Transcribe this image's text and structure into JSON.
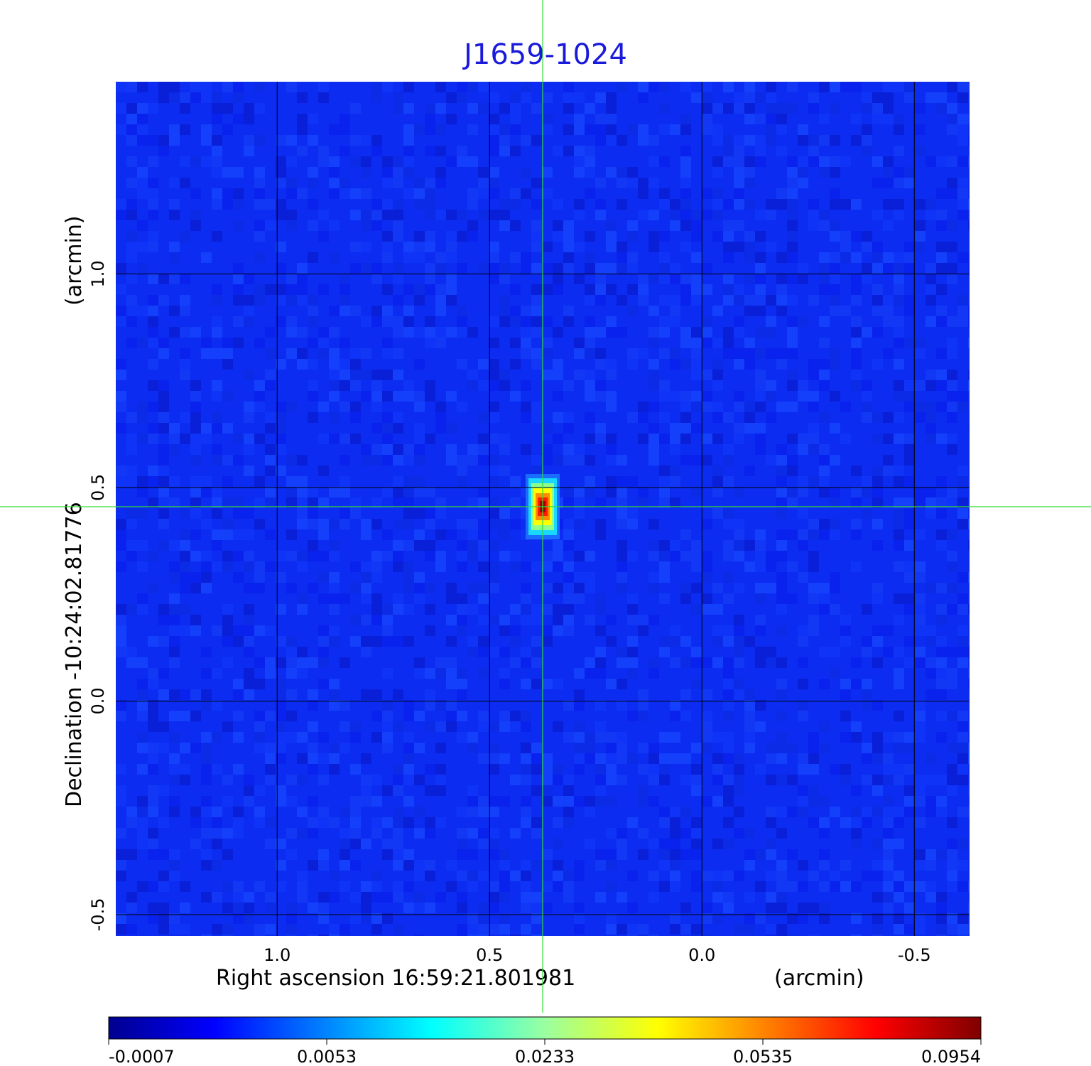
{
  "chart_data": {
    "type": "heatmap",
    "title": "J1659-1024",
    "xlabel": "Right ascension  16:59:21.801981",
    "xunit": "(arcmin)",
    "ylabel": "Declination  -10:24:02.81776",
    "yunit": "(arcmin)",
    "x_ticks": [
      {
        "value": 1.0,
        "label": "1.0"
      },
      {
        "value": 0.5,
        "label": "0.5"
      },
      {
        "value": 0.0,
        "label": "0.0"
      },
      {
        "value": -0.5,
        "label": "-0.5"
      }
    ],
    "y_ticks": [
      {
        "value": 1.0,
        "label": "1.0"
      },
      {
        "value": 0.5,
        "label": "0.5"
      },
      {
        "value": 0.0,
        "label": "0.0"
      },
      {
        "value": -0.5,
        "label": "-0.5"
      }
    ],
    "xlim": [
      1.38,
      -0.63
    ],
    "ylim": [
      -0.55,
      1.45
    ],
    "grid": true,
    "crosshair": {
      "x": 0.375,
      "y": 0.455
    },
    "source_peak": {
      "x": 0.375,
      "y": 0.455,
      "value": 0.0954
    },
    "colorbar": {
      "min": -0.0007,
      "max": 0.0954,
      "ticks": [
        {
          "value": -0.0007,
          "label": "-0.0007"
        },
        {
          "value": 0.0053,
          "label": "0.0053"
        },
        {
          "value": 0.0233,
          "label": "0.0233"
        },
        {
          "value": 0.0535,
          "label": "0.0535"
        },
        {
          "value": 0.0954,
          "label": "0.0954"
        }
      ]
    }
  },
  "colors": {
    "title": "#1a1adc",
    "grid": "#000000",
    "crosshair": "#33dd33",
    "colormap": [
      "#00008f",
      "#0000ff",
      "#00ffff",
      "#ffff00",
      "#ff0000",
      "#800000"
    ]
  }
}
